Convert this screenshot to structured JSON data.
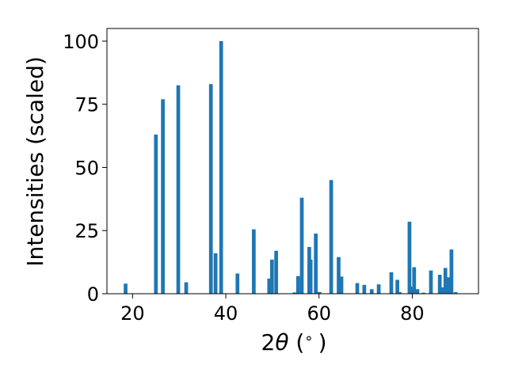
{
  "chart_data": {
    "type": "bar",
    "xlabel_main": "2",
    "xlabel_theta": "θ",
    "xlabel_unit": " (",
    "xlabel_degree": "∘",
    "xlabel_close": ")",
    "ylabel": "Intensities (scaled)",
    "xlim": [
      14.5,
      94.2
    ],
    "ylim": [
      0,
      105
    ],
    "xticks": [
      "20",
      "40",
      "60",
      "80"
    ],
    "xtick_values": [
      20,
      40,
      60,
      80
    ],
    "yticks": [
      "0",
      "25",
      "50",
      "75",
      "100"
    ],
    "ytick_values": [
      0,
      25,
      50,
      75,
      100
    ],
    "bar_width": 0.8,
    "bar_color": "#1f77b4",
    "x": [
      18.5,
      25.0,
      26.5,
      29.8,
      31.5,
      36.8,
      37.8,
      39.0,
      42.5,
      46.0,
      49.3,
      49.9,
      50.8,
      54.7,
      55.5,
      56.3,
      57.9,
      58.2,
      59.3,
      60.1,
      62.6,
      64.2,
      64.8,
      68.2,
      69.7,
      71.3,
      72.8,
      75.5,
      76.8,
      77.3,
      79.4,
      79.8,
      80.4,
      81.1,
      82.4,
      84.0,
      85.9,
      86.5,
      87.1,
      87.8,
      88.4,
      89.3
    ],
    "values": [
      4,
      63,
      77,
      82.5,
      4.5,
      83,
      16,
      100,
      8,
      25.5,
      6,
      13.5,
      17,
      0.5,
      7,
      38,
      18.5,
      13.5,
      23.8,
      0.7,
      45,
      14.5,
      6.8,
      4.2,
      3.5,
      1.8,
      3.7,
      8.5,
      5.5,
      0.6,
      28.5,
      2.8,
      10.5,
      1.8,
      0.4,
      9.2,
      7.5,
      2.5,
      10.2,
      6.5,
      17.5,
      0.6
    ]
  }
}
